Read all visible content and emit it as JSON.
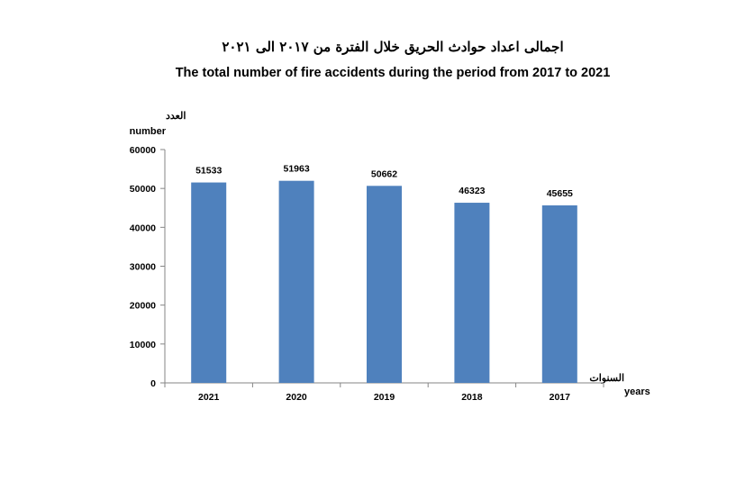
{
  "chart_data": {
    "type": "bar",
    "title_ar": "اجمالى اعداد حوادث الحريق خلال الفترة من ٢٠١٧ الى ٢٠٢١",
    "title": "The total number of fire accidents during the period from 2017 to 2021",
    "ylabel_ar": "العدد",
    "ylabel": "number",
    "xlabel_ar": "السنوات",
    "xlabel": "years",
    "categories": [
      "2021",
      "2020",
      "2019",
      "2018",
      "2017"
    ],
    "values": [
      51533,
      51963,
      50662,
      46323,
      45655
    ],
    "ylim": [
      0,
      60000
    ],
    "yticks": [
      "0",
      "10000",
      "20000",
      "30000",
      "40000",
      "50000",
      "60000"
    ],
    "grid": false,
    "legend": "none",
    "bar_color": "#4f81bd"
  }
}
